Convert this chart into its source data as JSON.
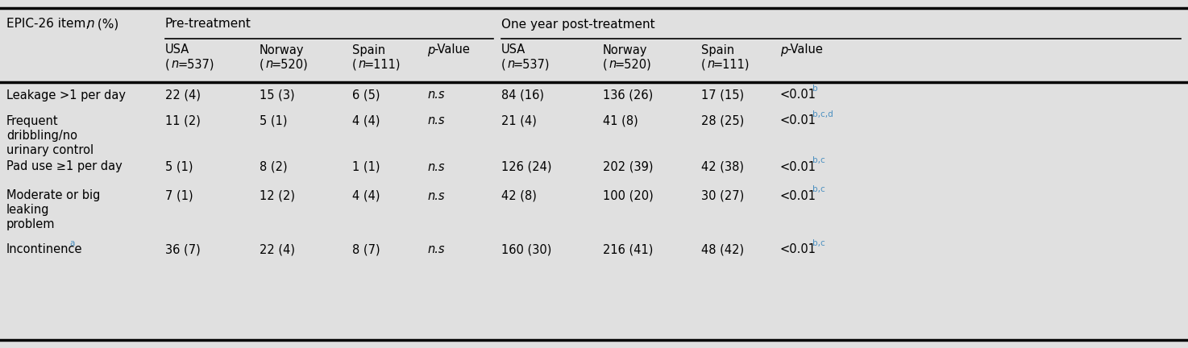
{
  "bg_color": "#e0e0e0",
  "text_color": "#000000",
  "blue_color": "#4a8fc0",
  "header_item": "EPIC-26 item, ",
  "header_item_italic": "n",
  "header_item_rest": " (%)",
  "group1_label": "Pre-treatment",
  "group2_label": "One year post-treatment",
  "sub_col_labels": [
    "USA",
    "Norway",
    "Spain",
    "p-Value",
    "USA",
    "Norway",
    "Spain",
    "p-Value"
  ],
  "sub_col_n": [
    "(n=537)",
    "(n=520)",
    "(n=111)",
    "",
    "(n=537)",
    "(n=520)",
    "(n=111)",
    ""
  ],
  "rows": [
    {
      "label_lines": [
        "Leakage >1 per day"
      ],
      "pre_usa": "22 (4)",
      "pre_nor": "15 (3)",
      "pre_esp": "6 (5)",
      "pre_p": "n.s",
      "post_usa": "84 (16)",
      "post_nor": "136 (26)",
      "post_esp": "17 (15)",
      "post_p": "<0.01",
      "post_p_sup": "b",
      "incontinence_sup": null
    },
    {
      "label_lines": [
        "Frequent",
        "dribbling/no",
        "urinary control"
      ],
      "pre_usa": "11 (2)",
      "pre_nor": "5 (1)",
      "pre_esp": "4 (4)",
      "pre_p": "n.s",
      "post_usa": "21 (4)",
      "post_nor": "41 (8)",
      "post_esp": "28 (25)",
      "post_p": "<0.01",
      "post_p_sup": "b,c,d",
      "incontinence_sup": null
    },
    {
      "label_lines": [
        "Pad use ≥1 per day"
      ],
      "pre_usa": "5 (1)",
      "pre_nor": "8 (2)",
      "pre_esp": "1 (1)",
      "pre_p": "n.s",
      "post_usa": "126 (24)",
      "post_nor": "202 (39)",
      "post_esp": "42 (38)",
      "post_p": "<0.01",
      "post_p_sup": "b,c",
      "incontinence_sup": null
    },
    {
      "label_lines": [
        "Moderate or big",
        "leaking",
        "problem"
      ],
      "pre_usa": "7 (1)",
      "pre_nor": "12 (2)",
      "pre_esp": "4 (4)",
      "pre_p": "n.s",
      "post_usa": "42 (8)",
      "post_nor": "100 (20)",
      "post_esp": "30 (27)",
      "post_p": "<0.01",
      "post_p_sup": "b,c",
      "incontinence_sup": null
    },
    {
      "label_lines": [
        "Incontinence"
      ],
      "pre_usa": "36 (7)",
      "pre_nor": "22 (4)",
      "pre_esp": "8 (7)",
      "pre_p": "n.s",
      "post_usa": "160 (30)",
      "post_nor": "216 (41)",
      "post_esp": "48 (42)",
      "post_p": "<0.01",
      "post_p_sup": "b,c",
      "incontinence_sup": "a"
    }
  ],
  "figsize": [
    14.74,
    4.32
  ],
  "dpi": 100
}
